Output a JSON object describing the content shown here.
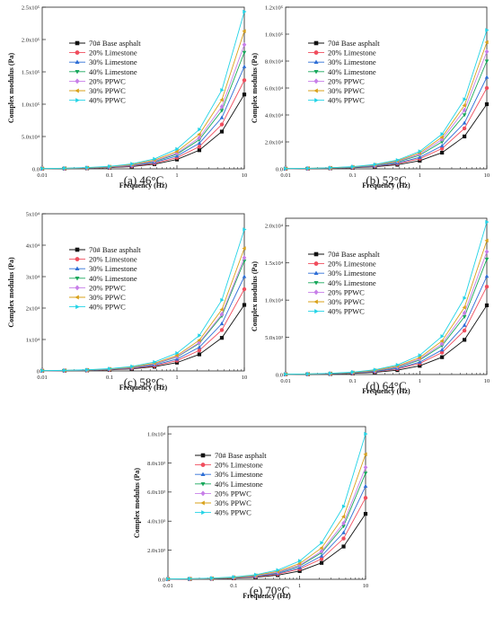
{
  "figure": {
    "series_names": [
      "70# Base asphalt",
      "20% Limestone",
      "30% Limestone",
      "40% Limestone",
      "20% PPWC",
      "30% PPWC",
      "40% PPWC"
    ],
    "series_colors": [
      "#111111",
      "#f04e5e",
      "#2f6fd6",
      "#19a85c",
      "#c77ee8",
      "#d9a21b",
      "#22d3e6"
    ],
    "series_markers": [
      "square",
      "circle",
      "triangle-up",
      "triangle-down",
      "diamond",
      "triangle-left",
      "triangle-right"
    ]
  },
  "chart_data": [
    {
      "type": "line",
      "caption": "(a) 46°C",
      "xlabel": "Frequency (Hz)",
      "ylabel": "Complex modulus (Pa)",
      "xscale": "log",
      "xlim": [
        0.01,
        10
      ],
      "ylim": [
        0,
        250000
      ],
      "xticks": [
        {
          "v": 0.01,
          "t": "0.01"
        },
        {
          "v": 0.1,
          "t": "0.1"
        },
        {
          "v": 1,
          "t": "1"
        },
        {
          "v": 10,
          "t": "10"
        }
      ],
      "yticks": [
        {
          "v": 0,
          "t": "0.0"
        },
        {
          "v": 50000,
          "t": "5.0x10⁴"
        },
        {
          "v": 100000,
          "t": "1.0x10⁵"
        },
        {
          "v": 150000,
          "t": "1.5x10⁵"
        },
        {
          "v": 200000,
          "t": "2.0x10⁵"
        },
        {
          "v": 250000,
          "t": "2.5x10⁵"
        }
      ],
      "x": [
        0.01,
        0.0215,
        0.0464,
        0.1,
        0.215,
        0.464,
        1,
        2.15,
        4.64,
        10
      ],
      "series_peaks": [
        115000,
        137000,
        158000,
        180000,
        192000,
        213000,
        243000
      ],
      "legend": "top-left"
    },
    {
      "type": "line",
      "caption": "(b) 52°C",
      "xlabel": "Frequency (Hz)",
      "ylabel": "Complex modulus (Pa)",
      "xscale": "log",
      "xlim": [
        0.01,
        10
      ],
      "ylim": [
        0,
        120000
      ],
      "xticks": [
        {
          "v": 0.01,
          "t": "0.01"
        },
        {
          "v": 0.1,
          "t": "0.1"
        },
        {
          "v": 1,
          "t": "1"
        },
        {
          "v": 10,
          "t": "10"
        }
      ],
      "yticks": [
        {
          "v": 0,
          "t": "0.0"
        },
        {
          "v": 20000,
          "t": "2.0x10⁴"
        },
        {
          "v": 40000,
          "t": "4.0x10⁴"
        },
        {
          "v": 60000,
          "t": "6.0x10⁴"
        },
        {
          "v": 80000,
          "t": "8.0x10⁴"
        },
        {
          "v": 100000,
          "t": "1.0x10⁵"
        },
        {
          "v": 120000,
          "t": "1.2x10⁵"
        }
      ],
      "x": [
        0.01,
        0.0215,
        0.0464,
        0.1,
        0.215,
        0.464,
        1,
        2.15,
        4.64,
        10
      ],
      "series_peaks": [
        48000,
        60000,
        68000,
        80000,
        87000,
        94000,
        103000
      ],
      "legend": "top-right"
    },
    {
      "type": "line",
      "caption": "(c) 58°C",
      "xlabel": "Frequency (Hz)",
      "ylabel": "Complex modulus (Pa)",
      "xscale": "log",
      "xlim": [
        0.01,
        10
      ],
      "ylim": [
        0,
        50000
      ],
      "xticks": [
        {
          "v": 0.01,
          "t": "0.01"
        },
        {
          "v": 0.1,
          "t": "0.1"
        },
        {
          "v": 1,
          "t": "1"
        },
        {
          "v": 10,
          "t": "10"
        }
      ],
      "yticks": [
        {
          "v": 0,
          "t": "0"
        },
        {
          "v": 10000,
          "t": "1x10⁴"
        },
        {
          "v": 20000,
          "t": "2x10⁴"
        },
        {
          "v": 30000,
          "t": "3x10⁴"
        },
        {
          "v": 40000,
          "t": "4x10⁴"
        },
        {
          "v": 50000,
          "t": "5x10⁴"
        }
      ],
      "x": [
        0.01,
        0.0215,
        0.0464,
        0.1,
        0.215,
        0.464,
        1,
        2.15,
        4.64,
        10
      ],
      "series_peaks": [
        21000,
        26000,
        30000,
        35000,
        36000,
        39000,
        45000
      ],
      "legend": "top-left"
    },
    {
      "type": "line",
      "caption": "(d) 64°C",
      "xlabel": "Frequency (Hz)",
      "ylabel": "Complex modulus (Pa)",
      "xscale": "log",
      "xlim": [
        0.01,
        10
      ],
      "ylim": [
        0,
        21000
      ],
      "xticks": [
        {
          "v": 0.01,
          "t": "0.01"
        },
        {
          "v": 0.1,
          "t": "0.1"
        },
        {
          "v": 1,
          "t": "1"
        },
        {
          "v": 10,
          "t": "10"
        }
      ],
      "yticks": [
        {
          "v": 0,
          "t": "0.0"
        },
        {
          "v": 5000,
          "t": "5.0x10³"
        },
        {
          "v": 10000,
          "t": "1.0x10⁴"
        },
        {
          "v": 15000,
          "t": "1.5x10⁴"
        },
        {
          "v": 20000,
          "t": "2.0x10⁴"
        }
      ],
      "x": [
        0.01,
        0.0215,
        0.0464,
        0.1,
        0.215,
        0.464,
        1,
        2.15,
        4.64,
        10
      ],
      "series_peaks": [
        9300,
        11800,
        13200,
        15500,
        16500,
        18000,
        20500
      ],
      "legend": "top-right"
    },
    {
      "type": "line",
      "caption": "(e) 70°C",
      "xlabel": "Frequency (Hz)",
      "ylabel": "Complex modulus (Pa)",
      "xscale": "log",
      "xlim": [
        0.01,
        10
      ],
      "ylim": [
        0,
        10500
      ],
      "xticks": [
        {
          "v": 0.01,
          "t": "0.01"
        },
        {
          "v": 0.1,
          "t": "0.1"
        },
        {
          "v": 1,
          "t": "1"
        },
        {
          "v": 10,
          "t": "10"
        }
      ],
      "yticks": [
        {
          "v": 0,
          "t": "0.0"
        },
        {
          "v": 2000,
          "t": "2.0x10³"
        },
        {
          "v": 4000,
          "t": "4.0x10³"
        },
        {
          "v": 6000,
          "t": "6.0x10³"
        },
        {
          "v": 8000,
          "t": "8.0x10³"
        },
        {
          "v": 10000,
          "t": "1.0x10⁴"
        }
      ],
      "x": [
        0.01,
        0.0215,
        0.0464,
        0.1,
        0.215,
        0.464,
        1,
        2.15,
        4.64,
        10
      ],
      "series_peaks": [
        4500,
        5600,
        6400,
        7300,
        7700,
        8600,
        10000
      ],
      "legend": "top-left"
    }
  ]
}
